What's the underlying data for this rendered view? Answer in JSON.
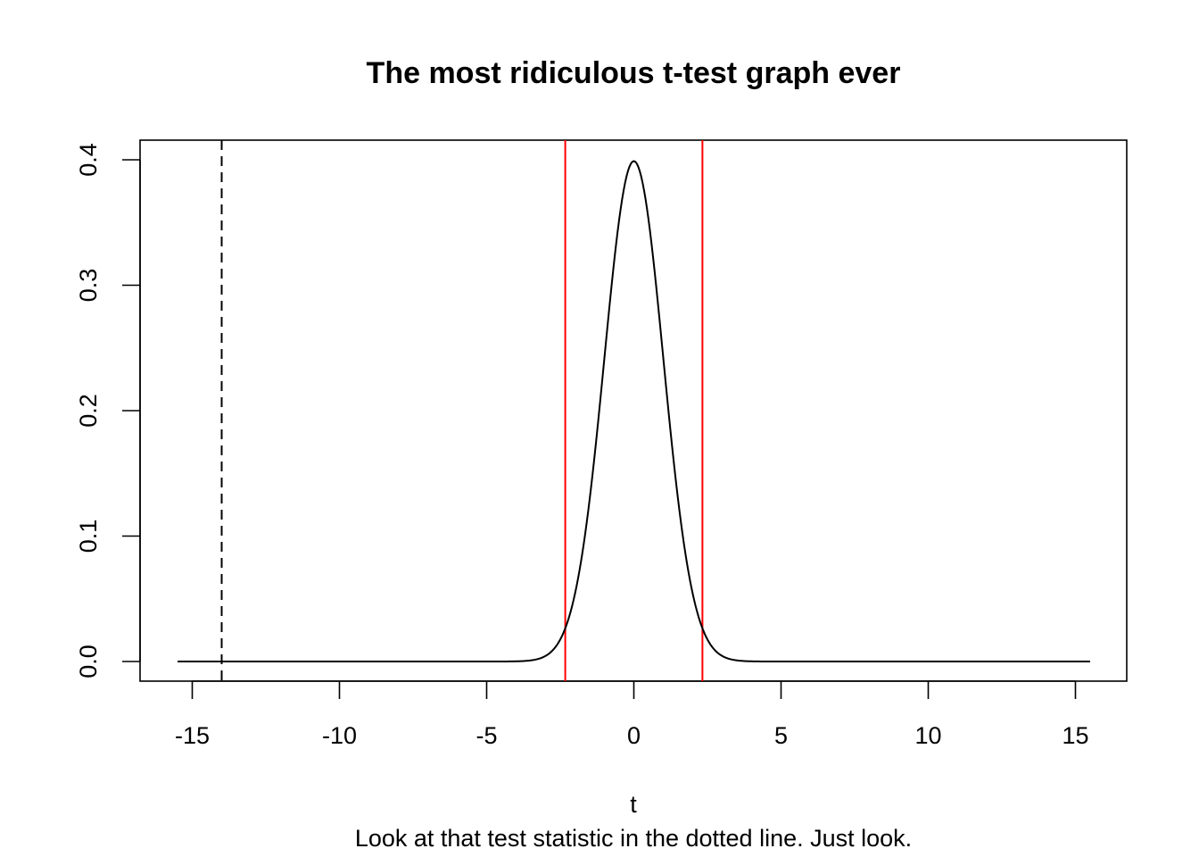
{
  "chart_data": {
    "type": "line",
    "title": "The most ridiculous t-test graph ever",
    "xlabel": "t",
    "subtitle": "Look at that test statistic in the dotted line. Just look.",
    "ylabel": "",
    "xlim": [
      -15.5,
      15.5
    ],
    "ylim": [
      0,
      0.4
    ],
    "x_ticks": [
      -15,
      -10,
      -5,
      0,
      5,
      10,
      15
    ],
    "x_tick_labels": [
      "-15",
      "-10",
      "-5",
      "0",
      "5",
      "10",
      "15"
    ],
    "y_ticks": [
      0.0,
      0.1,
      0.2,
      0.3,
      0.4
    ],
    "y_tick_labels": [
      "0.0",
      "0.1",
      "0.2",
      "0.3",
      "0.4"
    ],
    "grid": false,
    "series": [
      {
        "style": "solid",
        "color": "#000000",
        "x": [
          -15.5,
          -5,
          -4,
          -3.5,
          -3,
          -2.75,
          -2.5,
          -2.25,
          -2,
          -1.75,
          -1.5,
          -1.25,
          -1,
          -0.75,
          -0.5,
          -0.25,
          0,
          0.25,
          0.5,
          0.75,
          1,
          1.25,
          1.5,
          1.75,
          2,
          2.25,
          2.5,
          2.75,
          3,
          3.5,
          4,
          5,
          15.5
        ],
        "y": [
          0.0,
          0.0,
          0.0001,
          0.0009,
          0.0044,
          0.0091,
          0.0175,
          0.0317,
          0.054,
          0.0863,
          0.1295,
          0.1826,
          0.242,
          0.3011,
          0.3521,
          0.3867,
          0.399,
          0.3867,
          0.3521,
          0.3011,
          0.242,
          0.1826,
          0.1295,
          0.0863,
          0.054,
          0.0317,
          0.0175,
          0.0091,
          0.0044,
          0.0009,
          0.0001,
          0.0,
          0.0
        ]
      }
    ],
    "vertical_lines": [
      {
        "x": -14.0,
        "color": "#000000",
        "style": "dashed"
      },
      {
        "x": -2.33,
        "color": "#ff0000",
        "style": "solid"
      },
      {
        "x": 2.33,
        "color": "#ff0000",
        "style": "solid"
      }
    ]
  }
}
